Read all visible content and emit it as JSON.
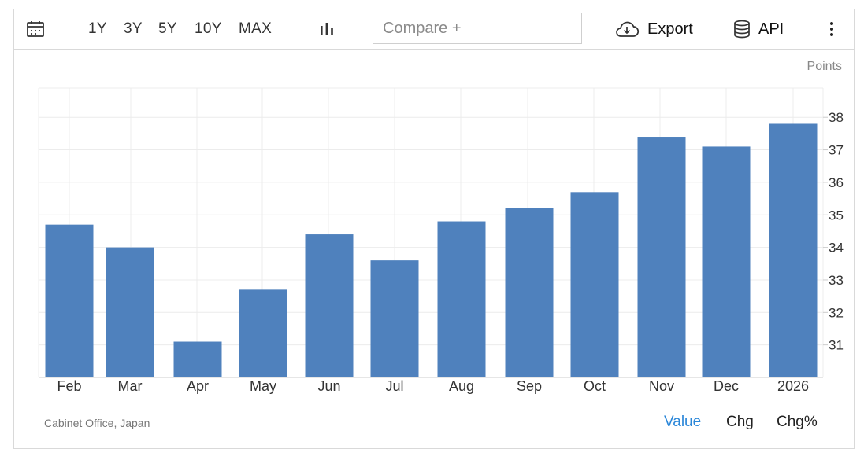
{
  "toolbar": {
    "calendar_icon": "calendar-icon",
    "ranges": [
      "1Y",
      "3Y",
      "5Y",
      "10Y",
      "MAX"
    ],
    "chart_type_icon": "bar-chart-icon",
    "compare_placeholder": "Compare +",
    "export_label": "Export",
    "api_label": "API",
    "more_icon": "vertical-ellipsis-icon"
  },
  "footer": {
    "source": "Cabinet Office, Japan",
    "tabs": [
      "Value",
      "Chg",
      "Chg%"
    ],
    "active_tab": "Value"
  },
  "colors": {
    "bar": "#4f81bd",
    "active_tab": "#2b87d9",
    "grid": "#ececec"
  },
  "chart_data": {
    "type": "bar",
    "categories": [
      "Feb",
      "Mar",
      "Apr",
      "May",
      "Jun",
      "Jul",
      "Aug",
      "Sep",
      "Oct",
      "Nov",
      "Dec",
      "2026"
    ],
    "values": [
      34.7,
      34.0,
      31.1,
      32.7,
      34.4,
      33.6,
      34.8,
      35.2,
      35.7,
      37.4,
      37.1,
      37.8
    ],
    "units": "Points",
    "yticks": [
      31,
      32,
      33,
      34,
      35,
      36,
      37,
      38
    ],
    "ylim": [
      30.0,
      38.9
    ],
    "grid": true,
    "y_axis_side": "right"
  }
}
